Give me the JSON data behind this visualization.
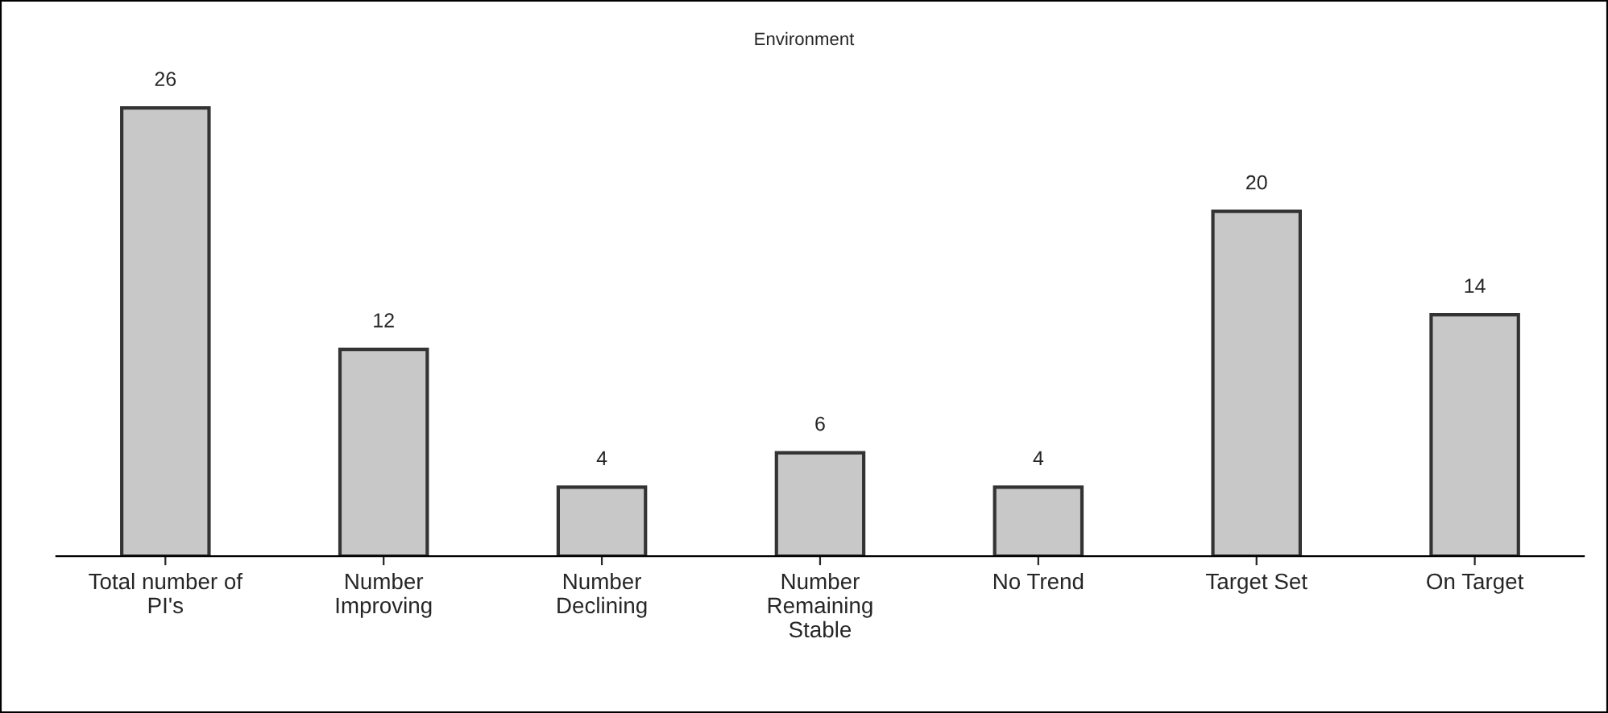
{
  "chart_data": {
    "type": "bar",
    "title": "Environment",
    "categories": [
      "Total number of\nPI's",
      "Number\nImproving",
      "Number\nDeclining",
      "Number\nRemaining\nStable",
      "No Trend",
      "Target Set",
      "On Target"
    ],
    "values": [
      26,
      12,
      4,
      6,
      4,
      20,
      14
    ],
    "color": "#c8c8c8",
    "tick_labels": "x",
    "data_labels": true,
    "grid": false,
    "legend": false
  }
}
